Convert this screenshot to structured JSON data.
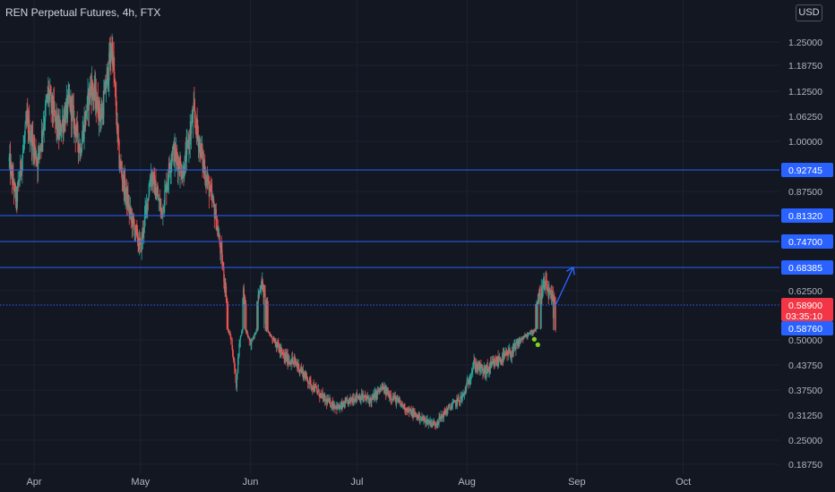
{
  "header": {
    "title": "REN Perpetual Futures, 4h, FTX",
    "currency_label": "USD"
  },
  "colors": {
    "background": "#131722",
    "up": "#26a69a",
    "down": "#ef5350",
    "level_line": "#2962ff",
    "arrow": "#2962ff",
    "last_price": "#f23645",
    "marker": "#7ed321",
    "axis_text": "#b2b5be",
    "grid": "#1e2230"
  },
  "chart_data": {
    "type": "candlestick",
    "symbol": "REN Perpetual Futures",
    "timeframe": "4h",
    "exchange": "FTX",
    "y_axis": {
      "ticks": [
        "1.25000",
        "1.18750",
        "1.12500",
        "1.06250",
        "1.00000",
        "0.87500",
        "0.62500",
        "0.50000",
        "0.43750",
        "0.37500",
        "0.31250",
        "0.25000",
        "0.18750"
      ]
    },
    "x_axis": {
      "ticks": [
        "Apr",
        "May",
        "Jun",
        "Jul",
        "Aug",
        "Sep",
        "Oct"
      ]
    },
    "price_path": [
      [
        "Mar 25",
        0.95
      ],
      [
        "Mar 27",
        0.85
      ],
      [
        "Mar 30",
        1.05
      ],
      [
        "Apr 2",
        0.95
      ],
      [
        "Apr 5",
        1.12
      ],
      [
        "Apr 8",
        1.02
      ],
      [
        "Apr 11",
        1.1
      ],
      [
        "Apr 14",
        0.98
      ],
      [
        "Apr 17",
        1.14
      ],
      [
        "Apr 20",
        1.06
      ],
      [
        "Apr 23",
        1.24
      ],
      [
        "Apr 25",
        0.95
      ],
      [
        "Apr 28",
        0.82
      ],
      [
        "May 1",
        0.73
      ],
      [
        "May 4",
        0.92
      ],
      [
        "May 7",
        0.82
      ],
      [
        "May 10",
        0.98
      ],
      [
        "May 13",
        0.92
      ],
      [
        "May 16",
        1.07
      ],
      [
        "May 19",
        0.93
      ],
      [
        "May 22",
        0.82
      ],
      [
        "May 24",
        0.7
      ],
      [
        "May 26",
        0.55
      ],
      [
        "May 28",
        0.39
      ],
      [
        "May 30",
        0.62
      ],
      [
        "Jun 1",
        0.48
      ],
      [
        "Jun 4",
        0.65
      ],
      [
        "Jun 7",
        0.52
      ],
      [
        "Jun 10",
        0.46
      ],
      [
        "Jun 14",
        0.44
      ],
      [
        "Jun 18",
        0.39
      ],
      [
        "Jun 22",
        0.35
      ],
      [
        "Jun 26",
        0.33
      ],
      [
        "Jul 1",
        0.36
      ],
      [
        "Jul 5",
        0.35
      ],
      [
        "Jul 8",
        0.38
      ],
      [
        "Jul 12",
        0.35
      ],
      [
        "Jul 16",
        0.32
      ],
      [
        "Jul 20",
        0.3
      ],
      [
        "Jul 23",
        0.29
      ],
      [
        "Jul 27",
        0.33
      ],
      [
        "Jul 31",
        0.36
      ],
      [
        "Aug 3",
        0.44
      ],
      [
        "Aug 6",
        0.42
      ],
      [
        "Aug 10",
        0.45
      ],
      [
        "Aug 14",
        0.47
      ],
      [
        "Aug 17",
        0.52
      ],
      [
        "Aug 19",
        0.55
      ],
      [
        "Aug 21",
        0.6
      ],
      [
        "Aug 23",
        0.64
      ],
      [
        "Aug 25",
        0.6
      ],
      [
        "Aug 26",
        0.589
      ]
    ],
    "horizontal_levels": [
      "0.92745",
      "0.81320",
      "0.74700",
      "0.68385"
    ],
    "last_price": {
      "value": "0.58900",
      "countdown": "03:35:10"
    },
    "dotted_level": "0.58760",
    "projection_arrow": {
      "from": [
        "Aug 26",
        0.589
      ],
      "to": [
        "Aug 31",
        0.685
      ]
    },
    "markers": [
      [
        "Aug 20",
        0.505
      ],
      [
        "Aug 21",
        0.488
      ]
    ]
  }
}
